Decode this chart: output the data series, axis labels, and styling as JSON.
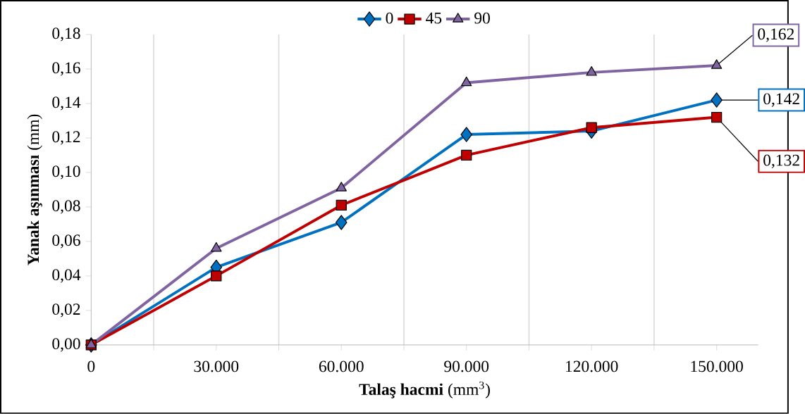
{
  "chart_data": {
    "type": "line",
    "xlabel": "**Talaş hacmi** (mm$^{3}$)",
    "ylabel": "**Yanak aşınması** (mm)",
    "x": [
      0,
      30000,
      60000,
      90000,
      120000,
      150000
    ],
    "series": [
      {
        "name": "0",
        "color": "#0070c0",
        "marker": "diamond",
        "values": [
          0,
          0.045,
          0.071,
          0.122,
          0.124,
          0.142
        ],
        "value_labels": [
          null,
          null,
          null,
          null,
          null,
          "0,142"
        ]
      },
      {
        "name": "45",
        "color": "#c00000",
        "marker": "square",
        "values": [
          0,
          0.04,
          0.081,
          0.11,
          0.126,
          0.132
        ],
        "value_labels": [
          null,
          null,
          null,
          null,
          null,
          "0,132"
        ]
      },
      {
        "name": "90",
        "color": "#8064a2",
        "marker": "triangle",
        "values": [
          0,
          0.056,
          0.091,
          0.152,
          0.158,
          0.162
        ],
        "value_labels": [
          null,
          null,
          null,
          null,
          null,
          "0,162"
        ]
      }
    ],
    "xlim": [
      0,
      160000
    ],
    "xticks": [
      {
        "value": 0,
        "label": "0"
      },
      {
        "value": 15000,
        "label": null
      },
      {
        "value": 30000,
        "label": "30.000"
      },
      {
        "value": 45000,
        "label": null
      },
      {
        "value": 60000,
        "label": "60.000"
      },
      {
        "value": 75000,
        "label": null
      },
      {
        "value": 90000,
        "label": "90.000"
      },
      {
        "value": 105000,
        "label": null
      },
      {
        "value": 120000,
        "label": "120.000"
      },
      {
        "value": 135000,
        "label": null
      },
      {
        "value": 150000,
        "label": "150.000"
      }
    ],
    "ylim": [
      0,
      0.18
    ],
    "yticks": [
      {
        "value": 0,
        "label": "0,00"
      },
      {
        "value": 0.02,
        "label": "0,02"
      },
      {
        "value": 0.04,
        "label": "0,04"
      },
      {
        "value": 0.06,
        "label": "0,06"
      },
      {
        "value": 0.08,
        "label": "0,08"
      },
      {
        "value": 0.1,
        "label": "0,10"
      },
      {
        "value": 0.12,
        "label": "0,12"
      },
      {
        "value": 0.14,
        "label": "0,14"
      },
      {
        "value": 0.16,
        "label": "0,16"
      },
      {
        "value": 0.18,
        "label": "0,18"
      }
    ],
    "grid": "x",
    "legend": "top",
    "line_style": "solid"
  }
}
